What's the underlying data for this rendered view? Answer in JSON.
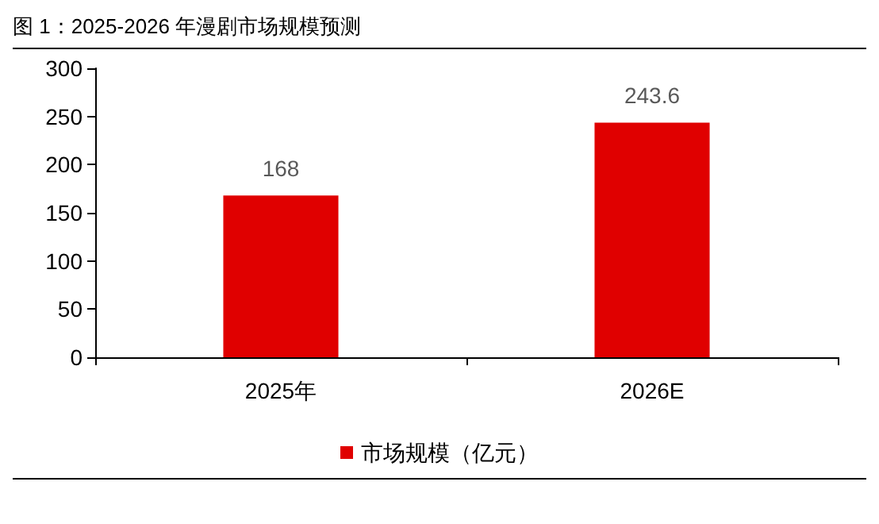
{
  "chart_data": {
    "type": "bar",
    "title": "图 1：2025-2026 年漫剧市场规模预测",
    "categories": [
      "2025年",
      "2026E"
    ],
    "series": [
      {
        "name": "市场规模（亿元）",
        "color": "#e00000",
        "values": [
          168,
          243.6
        ]
      }
    ],
    "ylim": [
      0,
      300
    ],
    "yticks": [
      0,
      50,
      100,
      150,
      200,
      250,
      300
    ],
    "data_labels": true,
    "grid": false,
    "legend": "bottom"
  }
}
